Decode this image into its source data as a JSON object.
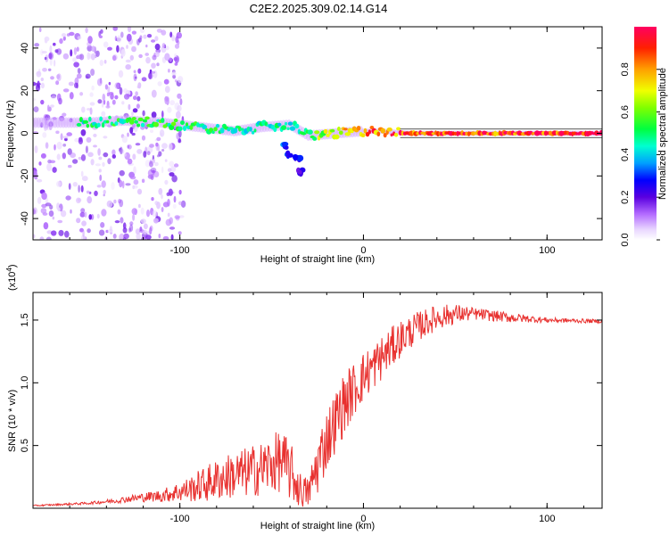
{
  "title": "C2E2.2025.309.02.14.G14",
  "colors": {
    "line": "#e8312f",
    "axis": "#000000",
    "peak": "#e8312f",
    "halo": "#9b3df0"
  },
  "chart_data": [
    {
      "type": "heatmap",
      "title": "C2E2.2025.309.02.14.G14",
      "xlabel": "Height of straight line (km)",
      "ylabel": "Frequency (Hz)",
      "xlim": [
        -180,
        130
      ],
      "ylim": [
        -50,
        50
      ],
      "xticks": [
        {
          "value": -100,
          "label": "-100"
        },
        {
          "value": 0,
          "label": "0"
        },
        {
          "value": 100,
          "label": "100"
        }
      ],
      "yticks": [
        {
          "value": -40,
          "label": "-40"
        },
        {
          "value": -20,
          "label": "-20"
        },
        {
          "value": 0,
          "label": "0"
        },
        {
          "value": 20,
          "label": "20"
        },
        {
          "value": 40,
          "label": "40"
        }
      ],
      "colorbar": {
        "label": "Normalized spectral amplitude",
        "range": [
          0,
          1
        ],
        "ticks": [
          {
            "value": 0.0,
            "label": "0.0"
          },
          {
            "value": 0.2,
            "label": "0.2"
          },
          {
            "value": 0.4,
            "label": "0.4"
          },
          {
            "value": 0.6,
            "label": "0.6"
          },
          {
            "value": 0.8,
            "label": "0.8"
          }
        ]
      },
      "ridge": [
        {
          "x": -150,
          "f": 5,
          "amp": 0.5
        },
        {
          "x": -130,
          "f": 6,
          "amp": 0.55
        },
        {
          "x": -110,
          "f": 5,
          "amp": 0.55
        },
        {
          "x": -90,
          "f": 3,
          "amp": 0.55
        },
        {
          "x": -70,
          "f": 1,
          "amp": 0.5
        },
        {
          "x": -55,
          "f": 3,
          "amp": 0.5
        },
        {
          "x": -40,
          "f": 4,
          "amp": 0.45
        },
        {
          "x": -30,
          "f": -1,
          "amp": 0.6
        },
        {
          "x": -15,
          "f": 0,
          "amp": 0.8
        },
        {
          "x": 0,
          "f": 1,
          "amp": 0.85
        },
        {
          "x": 10,
          "f": 1,
          "amp": 0.9
        },
        {
          "x": 25,
          "f": 0,
          "amp": 0.95
        },
        {
          "x": 50,
          "f": 0,
          "amp": 0.97
        },
        {
          "x": 80,
          "f": 0,
          "amp": 0.98
        },
        {
          "x": 110,
          "f": 0,
          "amp": 0.99
        },
        {
          "x": 130,
          "f": 0,
          "amp": 1.0
        }
      ],
      "branch": [
        {
          "x": -42,
          "f": -6,
          "amp": 0.35
        },
        {
          "x": -40,
          "f": -10,
          "amp": 0.3
        },
        {
          "x": -36,
          "f": -12,
          "amp": 0.3
        },
        {
          "x": -34,
          "f": -18,
          "amp": 0.25
        }
      ]
    },
    {
      "type": "line",
      "xlabel": "Height of straight line (km)",
      "ylabel": "SNR (10 * v/v)",
      "y_multiplier_label": "(x10",
      "y_multiplier_exp": "4",
      "y_multiplier_close": ")",
      "xlim": [
        -180,
        130
      ],
      "ylim": [
        0,
        1.72
      ],
      "xticks": [
        {
          "value": -100,
          "label": "-100"
        },
        {
          "value": 0,
          "label": "0"
        },
        {
          "value": 100,
          "label": "100"
        }
      ],
      "yticks": [
        {
          "value": 0.5,
          "label": "0.5"
        },
        {
          "value": 1.0,
          "label": "1.0"
        },
        {
          "value": 1.5,
          "label": "1.5"
        }
      ],
      "series": [
        {
          "name": "SNR",
          "x": [
            -180,
            -150,
            -135,
            -125,
            -110,
            -95,
            -85,
            -75,
            -65,
            -55,
            -45,
            -40,
            -35,
            -30,
            -25,
            -20,
            -15,
            -10,
            -5,
            0,
            10,
            20,
            30,
            40,
            50,
            60,
            80,
            100,
            130
          ],
          "mean": [
            0.02,
            0.04,
            0.06,
            0.08,
            0.1,
            0.15,
            0.2,
            0.25,
            0.28,
            0.32,
            0.38,
            0.3,
            0.15,
            0.12,
            0.35,
            0.55,
            0.7,
            0.85,
            0.95,
            1.05,
            1.2,
            1.35,
            1.45,
            1.52,
            1.55,
            1.55,
            1.52,
            1.5,
            1.49
          ],
          "amp": [
            0.005,
            0.01,
            0.02,
            0.03,
            0.05,
            0.1,
            0.15,
            0.18,
            0.2,
            0.22,
            0.25,
            0.25,
            0.15,
            0.12,
            0.25,
            0.25,
            0.25,
            0.25,
            0.22,
            0.2,
            0.18,
            0.15,
            0.12,
            0.1,
            0.08,
            0.05,
            0.04,
            0.02,
            0.015
          ]
        }
      ]
    }
  ]
}
